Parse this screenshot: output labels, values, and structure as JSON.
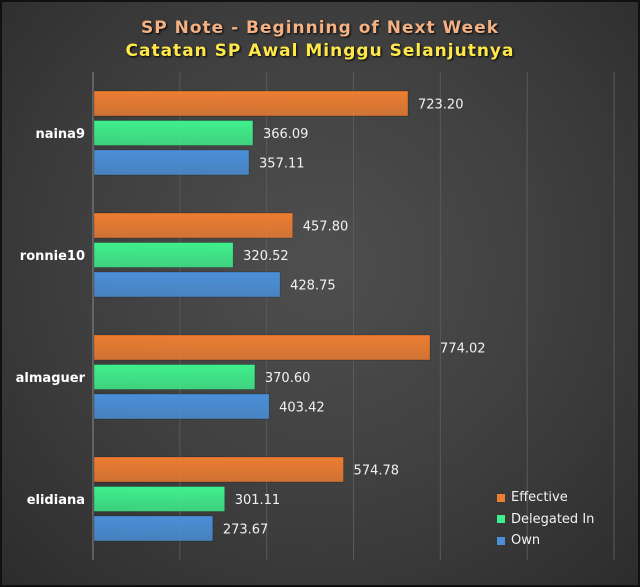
{
  "title": "SP Note - Beginning of Next Week",
  "subtitle": "Catatan SP Awal Minggu Selanjutnya",
  "colors": {
    "Effective": "#ed7d31",
    "Delegated In": "#3ff08c",
    "Own": "#4a90d9"
  },
  "chart_data": {
    "type": "bar",
    "orientation": "horizontal",
    "title": "SP Note - Beginning of Next Week",
    "subtitle": "Catatan SP Awal Minggu Selanjutnya",
    "categories": [
      "naina9",
      "ronnie10",
      "almaguer",
      "elidiana"
    ],
    "series": [
      {
        "name": "Effective",
        "values": [
          723.2,
          457.8,
          774.02,
          574.78
        ]
      },
      {
        "name": "Delegated In",
        "values": [
          366.09,
          320.52,
          370.6,
          301.11
        ]
      },
      {
        "name": "Own",
        "values": [
          357.11,
          428.75,
          403.42,
          273.67
        ]
      }
    ],
    "value_labels": [
      [
        "723.20",
        "366.09",
        "357.11"
      ],
      [
        "457.80",
        "320.52",
        "428.75"
      ],
      [
        "774.02",
        "370.60",
        "403.42"
      ],
      [
        "574.78",
        "301.11",
        "273.67"
      ]
    ],
    "xlim": [
      0,
      1200
    ],
    "grid": true,
    "legend_position": "bottom-right"
  }
}
